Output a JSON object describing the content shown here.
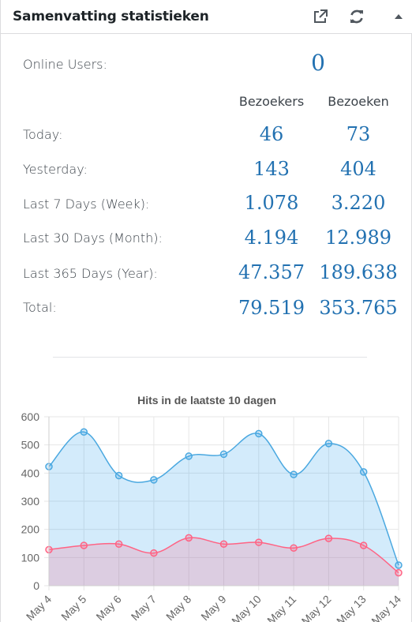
{
  "header": {
    "title": "Samenvatting statistieken"
  },
  "online": {
    "label": "Online Users:",
    "value": "0"
  },
  "columns": {
    "visitors": "Bezoekers",
    "visits": "Bezoeken"
  },
  "rows": [
    {
      "label": "Today:",
      "visitors": "46",
      "visits": "73"
    },
    {
      "label": "Yesterday:",
      "visitors": "143",
      "visits": "404"
    },
    {
      "label": "Last 7 Days (Week):",
      "visitors": "1.078",
      "visits": "3.220"
    },
    {
      "label": "Last 30 Days (Month):",
      "visitors": "4.194",
      "visits": "12.989"
    },
    {
      "label": "Last 365 Days (Year):",
      "visitors": "47.357",
      "visits": "189.638"
    },
    {
      "label": "Total:",
      "visitors": "79.519",
      "visits": "353.765"
    }
  ],
  "icons": {
    "external": "external-link-icon",
    "refresh": "refresh-icon",
    "collapse": "collapse-arrow-icon"
  },
  "colors": {
    "visits_line": "#4aa8e0",
    "visits_fill": "rgba(54,162,235,0.22)",
    "visitors_line": "#ff6384",
    "visitors_fill": "rgba(255,99,132,0.22)",
    "number": "#2271b1"
  },
  "chart_data": {
    "type": "area",
    "title": "Hits in de laatste 10 dagen",
    "categories": [
      "May 4",
      "May 5",
      "May 6",
      "May 7",
      "May 8",
      "May 9",
      "May 10",
      "May 11",
      "May 12",
      "May 13",
      "May 14"
    ],
    "series": [
      {
        "values": [
          423,
          546,
          391,
          376,
          460,
          467,
          540,
          395,
          505,
          404,
          73
        ]
      },
      {
        "values": [
          128,
          143,
          148,
          116,
          170,
          148,
          154,
          134,
          168,
          143,
          46
        ]
      }
    ],
    "ylim": [
      0,
      600
    ],
    "yticks": [
      0,
      100,
      200,
      300,
      400,
      500,
      600
    ],
    "grid": true,
    "xlabel": "",
    "ylabel": ""
  }
}
